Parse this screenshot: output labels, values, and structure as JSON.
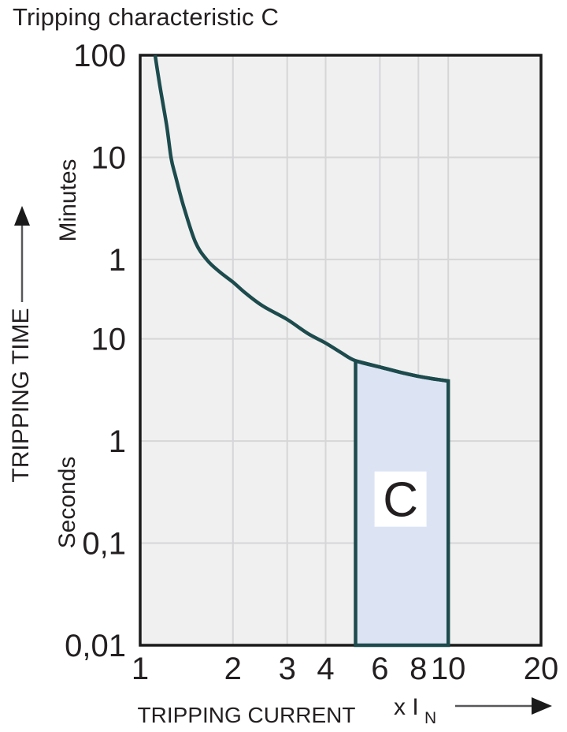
{
  "title": "Tripping characteristic C",
  "colors": {
    "curve": "#1d4b4d",
    "band_fill": "#dce4f4",
    "band_border": "#1d4b4d",
    "plot_bg": "#f0f0f0",
    "grid": "#d6d6d8",
    "plot_border": "#1a1a1a",
    "text": "#231f20",
    "arrow_shaft": "#58585a",
    "region_label_box": "#ffffff"
  },
  "chart_data": {
    "type": "line",
    "title": "Tripping characteristic C",
    "x_axis": {
      "title": "TRIPPING CURRENT",
      "unit_label": "x I",
      "unit_subscript": "N",
      "scale": "log",
      "range": [
        1,
        20
      ],
      "ticks": [
        {
          "value": 1,
          "label": "1"
        },
        {
          "value": 2,
          "label": "2"
        },
        {
          "value": 3,
          "label": "3"
        },
        {
          "value": 4,
          "label": "4"
        },
        {
          "value": 6,
          "label": "6"
        },
        {
          "value": 8,
          "label": "8"
        },
        {
          "value": 10,
          "label": "10"
        },
        {
          "value": 20,
          "label": "20"
        }
      ],
      "gridlines": [
        2,
        3,
        4,
        6,
        8,
        10
      ]
    },
    "y_axis": {
      "title": "TRIPPING TIME",
      "unit_upper": "Minutes",
      "unit_lower": "Seconds",
      "scale": "log",
      "range_seconds": [
        0.01,
        6000
      ],
      "ticks": [
        {
          "seconds": 6000,
          "label": "100"
        },
        {
          "seconds": 600,
          "label": "10"
        },
        {
          "seconds": 60,
          "label": "1"
        },
        {
          "seconds": 10,
          "label": "10"
        },
        {
          "seconds": 1,
          "label": "1"
        },
        {
          "seconds": 0.1,
          "label": "0,1"
        },
        {
          "seconds": 0.01,
          "label": "0,01"
        }
      ],
      "gridlines_seconds": [
        600,
        60,
        10,
        1,
        0.1
      ]
    },
    "series": [
      {
        "name": "tripping-curve",
        "points_x_time_seconds": [
          [
            1.118,
            6000
          ],
          [
            1.16,
            2950
          ],
          [
            1.22,
            1210
          ],
          [
            1.26,
            590
          ],
          [
            1.3,
            400
          ],
          [
            1.38,
            204
          ],
          [
            1.51,
            89
          ],
          [
            1.65,
            59
          ],
          [
            1.8,
            46
          ],
          [
            2.0,
            36
          ],
          [
            2.2,
            28
          ],
          [
            2.5,
            21
          ],
          [
            3.0,
            15.5
          ],
          [
            3.5,
            11.3
          ],
          [
            4.0,
            9.1
          ],
          [
            4.5,
            7.3
          ],
          [
            5.0,
            6.1
          ],
          [
            6.0,
            5.3
          ],
          [
            7.0,
            4.7
          ],
          [
            8.0,
            4.3
          ],
          [
            9.0,
            4.05
          ],
          [
            10.0,
            3.87
          ]
        ]
      }
    ],
    "region": {
      "label": "C",
      "x_from": 5,
      "x_to": 10,
      "time_bottom_seconds": 0.01,
      "top_follows_curve": true,
      "label_pos": {
        "x": 7.0,
        "t_seconds": 0.27
      }
    }
  }
}
